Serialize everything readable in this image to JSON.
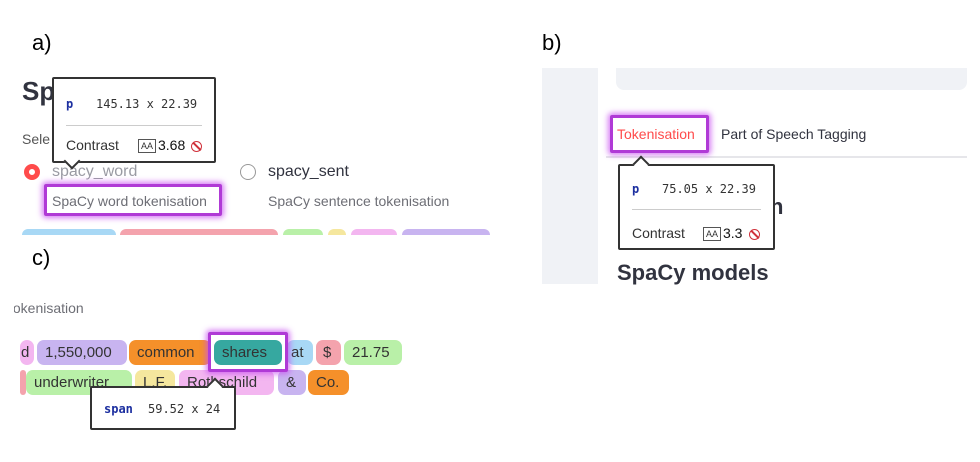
{
  "panels": {
    "a": "a)",
    "b": "b)",
    "c": "c)"
  },
  "colors": {
    "accent": "#ff4b4b",
    "highlight": "#b03ad6",
    "tag": "#1c2fa0",
    "fail": "#d0303a"
  },
  "panel_a": {
    "title_fragment": "Sp",
    "select_fragment": "Sele",
    "options": [
      {
        "label": "spacy_word",
        "desc": "SpaCy word tokenisation",
        "selected": true
      },
      {
        "label": "spacy_sent",
        "desc": "SpaCy sentence tokenisation",
        "selected": false
      }
    ],
    "inspector": {
      "tag": "p",
      "size": "145.13 x 22.39",
      "contrast_label": "Contrast",
      "aa": "AA",
      "contrast_value": "3.68",
      "fail_icon": "ban-icon"
    }
  },
  "panel_b": {
    "tabs": [
      "Tokenisation",
      "Part of Speech Tagging"
    ],
    "heading_fragment": "n",
    "heading": "SpaCy models",
    "inspector": {
      "tag": "p",
      "size": "75.05 x 22.39",
      "contrast_label": "Contrast",
      "aa": "AA",
      "contrast_value": "3.3",
      "fail_icon": "ban-icon"
    }
  },
  "panel_c": {
    "subtitle": "tokenisation",
    "row1": [
      "d",
      "1,550,000",
      "common",
      "shares",
      "at",
      "$",
      "21.75"
    ],
    "row2": [
      "",
      "underwriter",
      "L.F.",
      "Rothschild",
      "&",
      "Co."
    ],
    "inspector": {
      "tag": "span",
      "size": "59.52 x 24"
    }
  }
}
